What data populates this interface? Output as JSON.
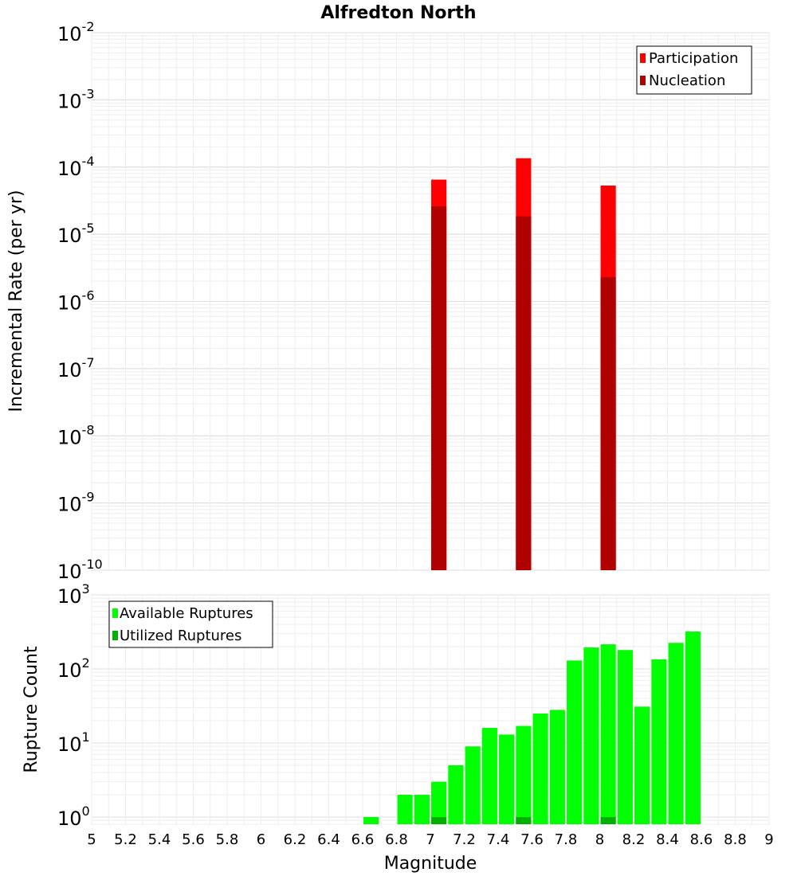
{
  "chart_data": [
    {
      "type": "bar",
      "title": "Alfredton North",
      "ylabel": "Incremental Rate (per yr)",
      "yscale": "log",
      "ylim": [
        1e-10,
        0.01
      ],
      "ytick_exponents": [
        "-10",
        "-9",
        "-8",
        "-7",
        "-6",
        "-5",
        "-4",
        "-3",
        "-2"
      ],
      "xlim": [
        5,
        9
      ],
      "grid": true,
      "legend_position": "top-right",
      "series": [
        {
          "name": "Participation",
          "color": "#ff0000",
          "x": [
            7.05,
            7.55,
            8.05
          ],
          "values": [
            6.5e-05,
            0.000135,
            5.3e-05
          ]
        },
        {
          "name": "Nucleation",
          "color": "#b00000",
          "x": [
            7.05,
            7.55,
            8.05
          ],
          "values": [
            2.6e-05,
            1.85e-05,
            2.3e-06
          ]
        }
      ]
    },
    {
      "type": "bar",
      "xlabel": "Magnitude",
      "ylabel": "Rupture Count",
      "yscale": "log",
      "ylim": [
        0.8,
        1000
      ],
      "ytick_exponents": [
        "0",
        "1",
        "2",
        "3"
      ],
      "xlim": [
        5,
        9
      ],
      "xticks": [
        "5",
        "5.2",
        "5.4",
        "5.6",
        "5.8",
        "6",
        "6.2",
        "6.4",
        "6.6",
        "6.8",
        "7",
        "7.2",
        "7.4",
        "7.6",
        "7.8",
        "8",
        "8.2",
        "8.4",
        "8.6",
        "8.8",
        "9"
      ],
      "grid": true,
      "legend_position": "top-left",
      "series": [
        {
          "name": "Available Ruptures",
          "color": "#00ff00",
          "x": [
            6.65,
            6.85,
            6.95,
            7.05,
            7.15,
            7.25,
            7.35,
            7.45,
            7.55,
            7.65,
            7.75,
            7.85,
            7.95,
            8.05,
            8.15,
            8.25,
            8.35,
            8.45,
            8.55
          ],
          "values": [
            1,
            2,
            2,
            3,
            5,
            9,
            16,
            13,
            17,
            25,
            28,
            130,
            195,
            215,
            180,
            31,
            135,
            225,
            320
          ]
        },
        {
          "name": "Utilized Ruptures",
          "color": "#00b000",
          "x": [
            7.05,
            7.55,
            8.05
          ],
          "values": [
            1,
            1,
            1
          ]
        }
      ]
    }
  ]
}
